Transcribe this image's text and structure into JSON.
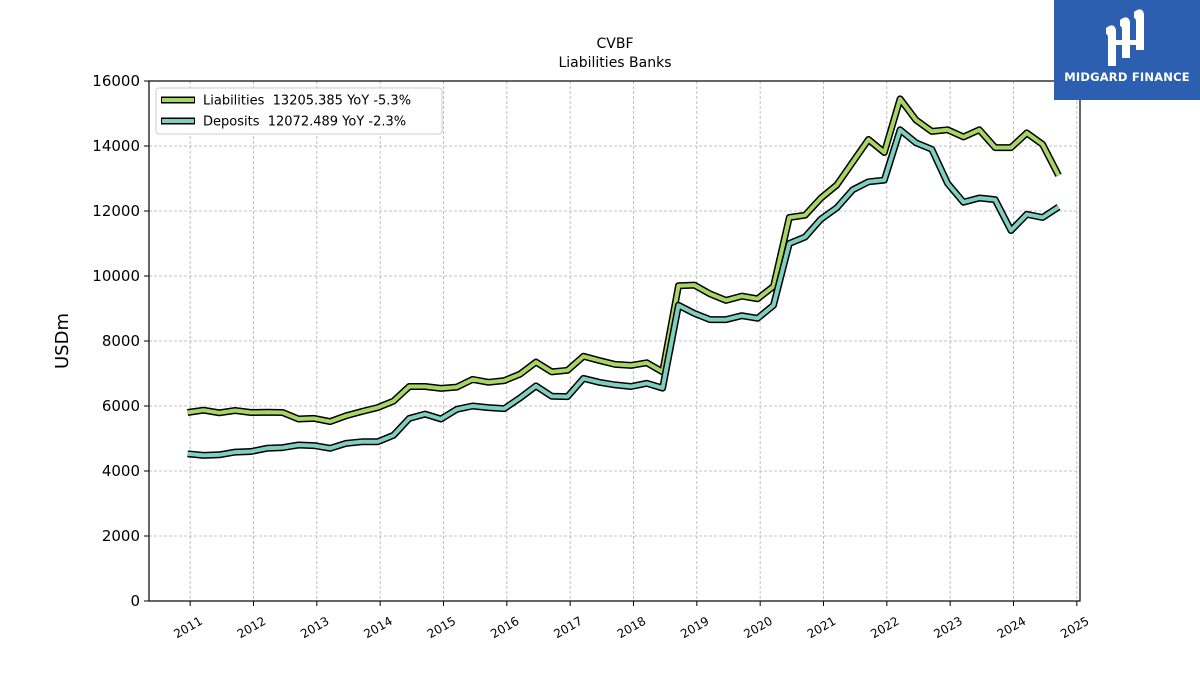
{
  "chart_data": {
    "type": "line",
    "title": "CVBF",
    "subtitle": "Liabilities Banks",
    "xlabel": "",
    "ylabel": "USDm",
    "xlim": [
      2010.35,
      2025.05
    ],
    "ylim": [
      0,
      16000
    ],
    "yticks": [
      0,
      2000,
      4000,
      6000,
      8000,
      10000,
      12000,
      14000,
      16000
    ],
    "xticks": [
      "2011",
      "2012",
      "2013",
      "2014",
      "2015",
      "2016",
      "2017",
      "2018",
      "2019",
      "2020",
      "2021",
      "2022",
      "2023",
      "2024",
      "2025"
    ],
    "grid": true,
    "legend_position": "top-left",
    "x": [
      2010.96,
      2011.21,
      2011.46,
      2011.71,
      2011.96,
      2012.21,
      2012.46,
      2012.71,
      2012.96,
      2013.21,
      2013.46,
      2013.71,
      2013.96,
      2014.21,
      2014.46,
      2014.71,
      2014.96,
      2015.21,
      2015.46,
      2015.71,
      2015.96,
      2016.21,
      2016.46,
      2016.71,
      2016.96,
      2017.21,
      2017.46,
      2017.71,
      2017.96,
      2018.21,
      2018.46,
      2018.71,
      2018.96,
      2019.21,
      2019.46,
      2019.71,
      2019.96,
      2020.21,
      2020.46,
      2020.71,
      2020.96,
      2021.21,
      2021.46,
      2021.71,
      2021.96,
      2022.21,
      2022.46,
      2022.71,
      2022.96,
      2023.21,
      2023.46,
      2023.71,
      2023.96,
      2024.21,
      2024.46,
      2024.71
    ],
    "series": [
      {
        "name": "Liabilities",
        "legend_label": "Liabilities  13205.385 YoY -5.3%",
        "color": "#a8d665",
        "values": [
          5800,
          5870,
          5790,
          5860,
          5800,
          5810,
          5800,
          5600,
          5620,
          5520,
          5700,
          5830,
          5950,
          6150,
          6600,
          6600,
          6540,
          6580,
          6820,
          6730,
          6780,
          6980,
          7350,
          7050,
          7100,
          7530,
          7400,
          7280,
          7250,
          7330,
          7050,
          9700,
          9720,
          9450,
          9250,
          9380,
          9300,
          9680,
          11800,
          11870,
          12400,
          12800,
          13500,
          14200,
          13800,
          15450,
          14800,
          14450,
          14500,
          14280,
          14500,
          13950,
          13950,
          14400,
          14050,
          13100
        ]
      },
      {
        "name": "Deposits",
        "legend_label": "Deposits  12072.489 YoY -2.3%",
        "color": "#7ecfc0",
        "values": [
          4530,
          4480,
          4500,
          4580,
          4600,
          4700,
          4720,
          4800,
          4780,
          4700,
          4850,
          4900,
          4900,
          5100,
          5620,
          5750,
          5600,
          5900,
          6000,
          5950,
          5920,
          6250,
          6620,
          6300,
          6290,
          6850,
          6730,
          6650,
          6600,
          6700,
          6550,
          9100,
          8850,
          8660,
          8660,
          8780,
          8700,
          9100,
          11000,
          11200,
          11750,
          12100,
          12650,
          12900,
          12950,
          14500,
          14100,
          13900,
          12850,
          12270,
          12400,
          12350,
          11400,
          11900,
          11800,
          12120
        ]
      }
    ]
  },
  "logo": {
    "text": "MIDGARD FINANCE",
    "color": "#2d5fb0"
  }
}
